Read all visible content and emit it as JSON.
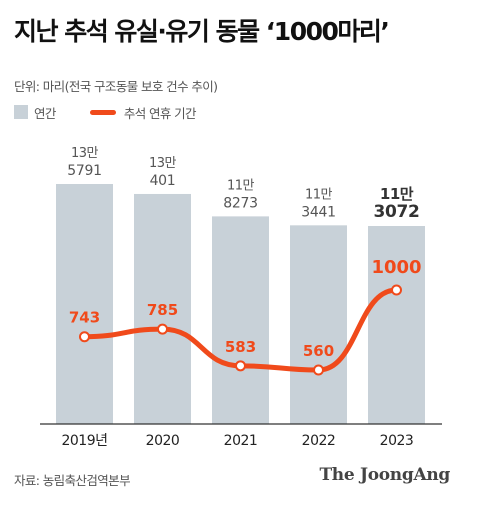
{
  "title": "지난 추석 유실·유기 동물 ‘1000마리’",
  "unit_note": "단위: 마리(전국 구조동물 보호 건수 추이)",
  "legend": {
    "bar_label": "연간",
    "line_label": "추석 연휴 기간"
  },
  "source": "자료: 농림축산검역본부",
  "logo": "The JoongAng",
  "colors": {
    "bar": "#c8d1d8",
    "line": "#f04a1b",
    "label": "#555555",
    "axis": "#333333"
  },
  "chart_data": {
    "type": "bar",
    "categories": [
      "2019년",
      "2020",
      "2021",
      "2022",
      "2023"
    ],
    "series": [
      {
        "name": "연간",
        "type": "bar",
        "values": [
          135791,
          130401,
          118273,
          113441,
          113072
        ],
        "labels": [
          [
            "13만",
            "5791"
          ],
          [
            "13만",
            "401"
          ],
          [
            "11만",
            "8273"
          ],
          [
            "11만",
            "3441"
          ],
          [
            "11만",
            "3072"
          ]
        ]
      },
      {
        "name": "추석 연휴 기간",
        "type": "line",
        "values": [
          743,
          785,
          583,
          560,
          1000
        ]
      }
    ],
    "grid": false,
    "legend_position": "top-left"
  }
}
